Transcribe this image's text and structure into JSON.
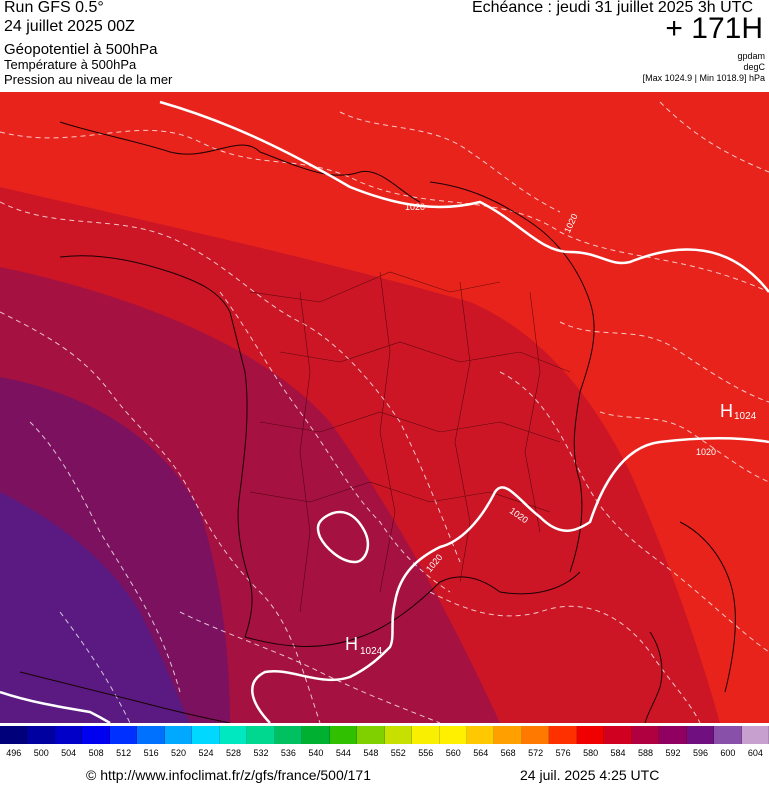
{
  "header": {
    "run_title": "Run GFS 0.5°",
    "run_date": "24 juillet 2025 00Z",
    "layer_geopotential": "Géopotentiel à 500hPa",
    "layer_temperature": "Température à 500hPa",
    "layer_pressure": "Pression au niveau de la mer",
    "forecast_label": "Echéance : jeudi 31 juillet 2025 3h UTC",
    "forecast_hour": "+ 171H",
    "unit_geopotential": "gpdam",
    "unit_temperature": "degC",
    "minmax": "[Max 1024.9 | Min 1018.9] hPa"
  },
  "map": {
    "isobar_labels": [
      "1020",
      "1020",
      "1020",
      "1020",
      "1020"
    ],
    "high_pressure": [
      {
        "symbol": "H",
        "value": "1024"
      },
      {
        "symbol": "H",
        "value": "1024"
      }
    ],
    "colors": {
      "band_584": "#e8231c",
      "band_588": "#cc1626",
      "band_592": "#a51140",
      "band_596": "#7c1160",
      "band_600": "#5a1a82",
      "isobar": "#ffffff",
      "coast": "#1a0000"
    }
  },
  "colorbar": {
    "labels": [
      "496",
      "500",
      "504",
      "508",
      "512",
      "516",
      "520",
      "524",
      "528",
      "532",
      "536",
      "540",
      "544",
      "548",
      "552",
      "556",
      "560",
      "564",
      "568",
      "572",
      "576",
      "580",
      "584",
      "588",
      "592",
      "596",
      "600",
      "604"
    ],
    "colors": [
      "#00007a",
      "#0000a0",
      "#0000c8",
      "#0000f0",
      "#0030ff",
      "#0070ff",
      "#00a8ff",
      "#00d8ff",
      "#00e8c0",
      "#00d890",
      "#00c060",
      "#00b030",
      "#30c000",
      "#80d000",
      "#c8e000",
      "#f8f000",
      "#fff000",
      "#ffc800",
      "#ffa000",
      "#ff7800",
      "#ff3000",
      "#f00000",
      "#d00020",
      "#b00040",
      "#900060",
      "#701080",
      "#8850a8",
      "#c8a0d0"
    ]
  },
  "footer": {
    "url": "© http://www.infoclimat.fr/z/gfs/france/500/171",
    "timestamp": "24 juil. 2025  4:25 UTC"
  }
}
